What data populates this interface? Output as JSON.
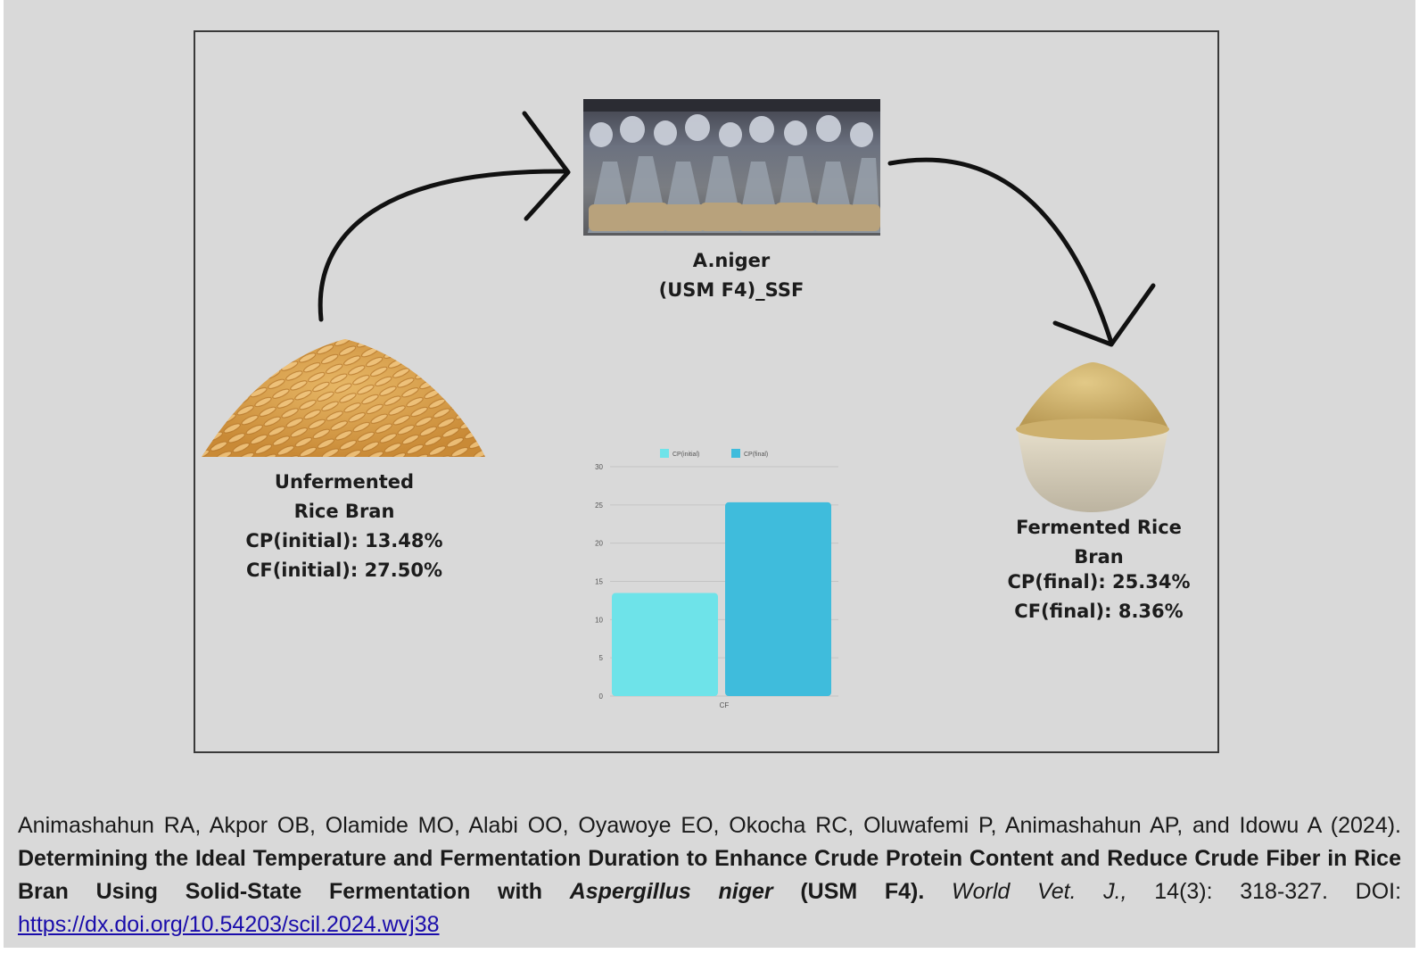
{
  "center": {
    "line1": "A.niger",
    "line2": "(USM F4)_SSF"
  },
  "left": {
    "line1": "Unfermented",
    "line2": "Rice Bran",
    "line3": "CP(initial): 13.48%",
    "line4": "CF(initial): 27.50%"
  },
  "right": {
    "line1": "Fermented Rice",
    "line2": "Bran",
    "line3": "CP(final): 25.34%",
    "line4": "CF(final): 8.36%"
  },
  "chart_data": {
    "type": "bar",
    "categories": [
      "CF"
    ],
    "series": [
      {
        "name": "CP(initial)",
        "values": [
          13.48
        ],
        "color": "#6ee3e9"
      },
      {
        "name": "CP(final)",
        "values": [
          25.34
        ],
        "color": "#3fbcdc"
      }
    ],
    "yticks": [
      "0",
      "5",
      "10",
      "15",
      "20",
      "25",
      "30"
    ],
    "ylim": [
      0,
      30
    ],
    "legend": "top",
    "grid": true
  },
  "caption": {
    "authors": "Animashahun RA, Akpor OB, Olamide MO, Alabi OO, Oyawoye EO, Okocha RC, Oluwafemi P, Animashahun AP, and Idowu A (2024).",
    "title": "Determining the Ideal Temperature and Fermentation Duration to Enhance Crude Protein Content and Reduce Crude Fiber in Rice Bran Using Solid-State Fermentation with",
    "species": "Aspergillus niger",
    "strain": "(USM F4).",
    "journal": "World Vet. J.,",
    "pages": "14(3): 318-327.",
    "doi_label": "DOI:",
    "doi": "https://dx.doi.org/10.54203/scil.2024.wvj38"
  },
  "colors": {
    "background": "#d9d9d9",
    "rice": "#d9a350",
    "powder": "#d6bd75"
  }
}
